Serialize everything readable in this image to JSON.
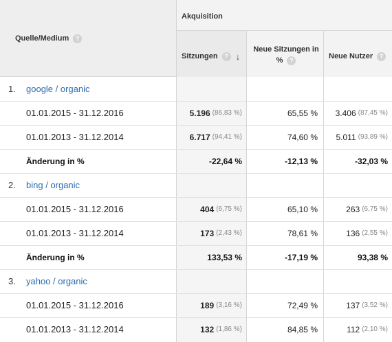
{
  "header": {
    "source_label": "Quelle/Medium",
    "group_label": "Akquisition",
    "col_sessions": "Sitzungen",
    "col_new_sessions_line1": "Neue Sitzungen in",
    "col_new_sessions_line2": "%",
    "col_new_users": "Neue Nutzer",
    "help_glyph": "?",
    "sort_glyph": "↓"
  },
  "groups": [
    {
      "num": "1.",
      "name": "google / organic",
      "rows": [
        {
          "date": "01.01.2015 - 31.12.2016",
          "sessions": "5.196",
          "sessions_pct": "(86,83 %)",
          "new_sessions": "65,55 %",
          "new_users": "3.406",
          "new_users_pct": "(87,45 %)"
        },
        {
          "date": "01.01.2013 - 31.12.2014",
          "sessions": "6.717",
          "sessions_pct": "(94,41 %)",
          "new_sessions": "74,60 %",
          "new_users": "5.011",
          "new_users_pct": "(93,89 %)"
        }
      ],
      "change": {
        "label": "Änderung in %",
        "sessions": "-22,64 %",
        "new_sessions": "-12,13 %",
        "new_users": "-32,03 %"
      }
    },
    {
      "num": "2.",
      "name": "bing / organic",
      "rows": [
        {
          "date": "01.01.2015 - 31.12.2016",
          "sessions": "404",
          "sessions_pct": "(6,75 %)",
          "new_sessions": "65,10 %",
          "new_users": "263",
          "new_users_pct": "(6,75 %)"
        },
        {
          "date": "01.01.2013 - 31.12.2014",
          "sessions": "173",
          "sessions_pct": "(2,43 %)",
          "new_sessions": "78,61 %",
          "new_users": "136",
          "new_users_pct": "(2,55 %)"
        }
      ],
      "change": {
        "label": "Änderung in %",
        "sessions": "133,53 %",
        "new_sessions": "-17,19 %",
        "new_users": "93,38 %"
      }
    },
    {
      "num": "3.",
      "name": "yahoo / organic",
      "rows": [
        {
          "date": "01.01.2015 - 31.12.2016",
          "sessions": "189",
          "sessions_pct": "(3,16 %)",
          "new_sessions": "72,49 %",
          "new_users": "137",
          "new_users_pct": "(3,52 %)"
        },
        {
          "date": "01.01.2013 - 31.12.2014",
          "sessions": "132",
          "sessions_pct": "(1,86 %)",
          "new_sessions": "84,85 %",
          "new_users": "112",
          "new_users_pct": "(2,10 %)"
        }
      ]
    }
  ]
}
